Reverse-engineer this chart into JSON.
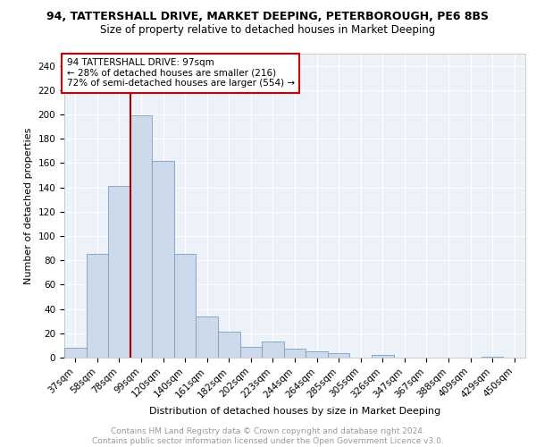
{
  "title1": "94, TATTERSHALL DRIVE, MARKET DEEPING, PETERBOROUGH, PE6 8BS",
  "title2": "Size of property relative to detached houses in Market Deeping",
  "xlabel": "Distribution of detached houses by size in Market Deeping",
  "ylabel": "Number of detached properties",
  "bar_labels": [
    "37sqm",
    "58sqm",
    "78sqm",
    "99sqm",
    "120sqm",
    "140sqm",
    "161sqm",
    "182sqm",
    "202sqm",
    "223sqm",
    "244sqm",
    "264sqm",
    "285sqm",
    "305sqm",
    "326sqm",
    "347sqm",
    "367sqm",
    "388sqm",
    "409sqm",
    "429sqm",
    "450sqm"
  ],
  "bar_values": [
    8,
    85,
    141,
    199,
    162,
    85,
    34,
    21,
    9,
    13,
    7,
    5,
    4,
    0,
    2,
    0,
    0,
    0,
    0,
    1,
    0
  ],
  "bar_color": "#ccdaeb",
  "bar_edge_color": "#7aa0c0",
  "annotation_text": "94 TATTERSHALL DRIVE: 97sqm\n← 28% of detached houses are smaller (216)\n72% of semi-detached houses are larger (554) →",
  "annotation_box_color": "#ffffff",
  "annotation_box_edge_color": "#cc0000",
  "vline_color": "#aa0000",
  "vline_x": 2.5,
  "ylim": [
    0,
    250
  ],
  "yticks": [
    0,
    20,
    40,
    60,
    80,
    100,
    120,
    140,
    160,
    180,
    200,
    220,
    240
  ],
  "footer_line1": "Contains HM Land Registry data © Crown copyright and database right 2024.",
  "footer_line2": "Contains public sector information licensed under the Open Government Licence v3.0.",
  "background_color": "#edf2f8",
  "grid_color": "#ffffff",
  "title1_fontsize": 9,
  "title2_fontsize": 8.5,
  "xlabel_fontsize": 8,
  "ylabel_fontsize": 8,
  "tick_fontsize": 7.5,
  "footer_fontsize": 6.5
}
